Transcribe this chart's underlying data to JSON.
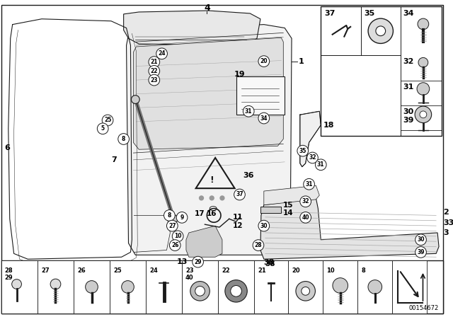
{
  "figure_width": 6.4,
  "figure_height": 4.48,
  "dpi": 100,
  "background_color": "#ffffff",
  "diagram_id": "00154672"
}
